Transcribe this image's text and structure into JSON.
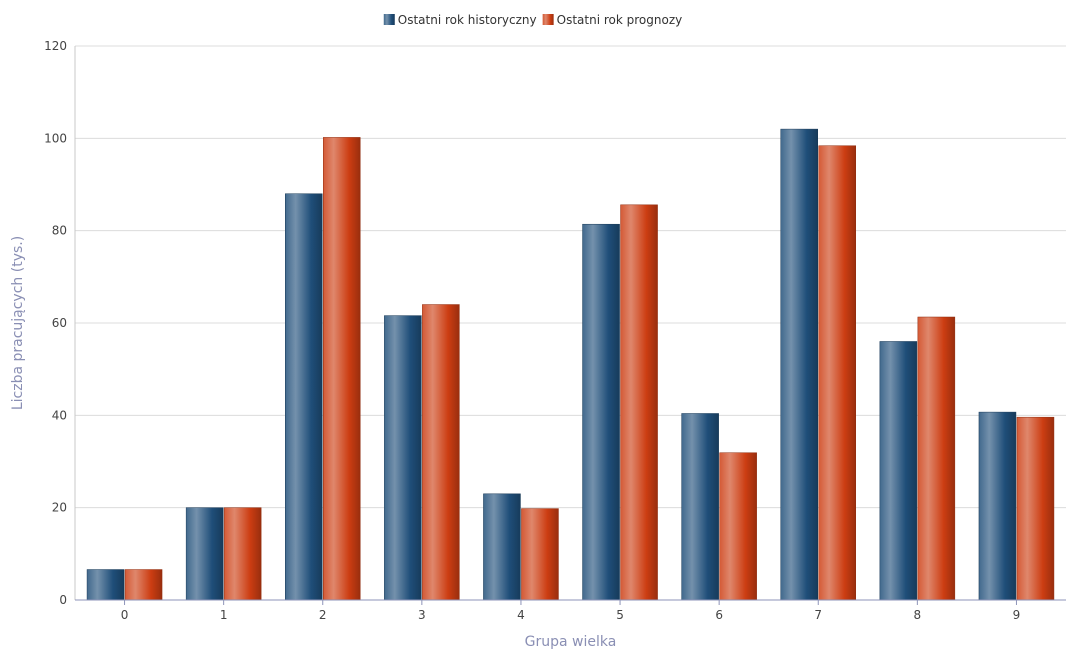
{
  "chart_data": {
    "type": "bar",
    "categories": [
      "0",
      "1",
      "2",
      "3",
      "4",
      "5",
      "6",
      "7",
      "8",
      "9"
    ],
    "series": [
      {
        "name": "Ostatni rok historyczny",
        "color": "#1f4e79",
        "values": [
          6.6,
          20.0,
          88.0,
          61.6,
          23.0,
          81.4,
          40.4,
          102.0,
          56.0,
          40.7
        ]
      },
      {
        "name": "Ostatni rok prognozy",
        "color": "#cc3d12",
        "values": [
          6.6,
          20.0,
          100.2,
          64.0,
          19.8,
          85.6,
          31.9,
          98.4,
          61.3,
          39.6
        ]
      }
    ],
    "xlabel": "Grupa wielka",
    "ylabel": "Liczba pracujących (tys.)",
    "ylim": [
      0,
      120
    ],
    "yticks": [
      0,
      20,
      40,
      60,
      80,
      100,
      120
    ],
    "grid": true,
    "legend_position": "top-center"
  }
}
